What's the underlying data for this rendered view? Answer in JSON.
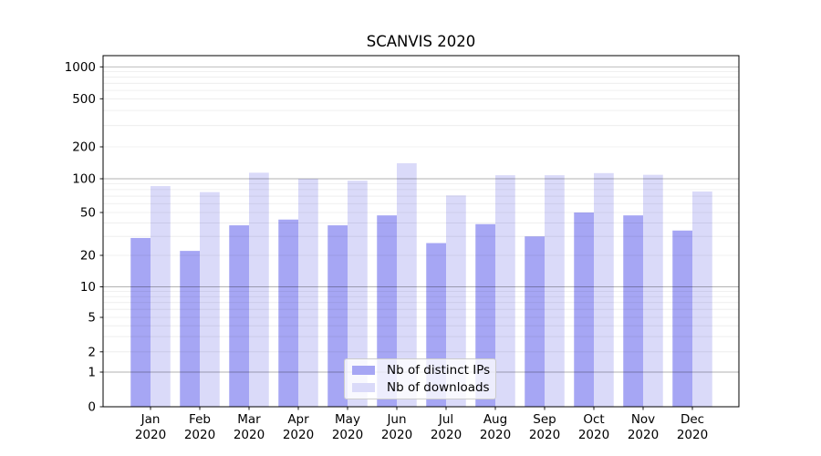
{
  "title": "SCANVIS 2020",
  "chart_data": {
    "type": "bar",
    "title": "SCANVIS 2020",
    "categories": [
      "Jan",
      "Feb",
      "Mar",
      "Apr",
      "May",
      "Jun",
      "Jul",
      "Aug",
      "Sep",
      "Oct",
      "Nov",
      "Dec"
    ],
    "category_year": "2020",
    "series": [
      {
        "name": "Nb of distinct IPs",
        "color": "#a6a6f4",
        "values": [
          29,
          22,
          38,
          43,
          38,
          47,
          26,
          39,
          30,
          50,
          47,
          34
        ]
      },
      {
        "name": "Nb of downloads",
        "color": "#dadaf9",
        "values": [
          86,
          76,
          114,
          100,
          96,
          140,
          71,
          108,
          108,
          113,
          109,
          77
        ]
      }
    ],
    "yscale": "symlog",
    "yticks": [
      0,
      1,
      2,
      5,
      10,
      20,
      50,
      100,
      200,
      500,
      1000
    ],
    "ytick_labels": [
      "0",
      "1",
      "2",
      "5",
      "10",
      "20",
      "50",
      "100",
      "200",
      "500",
      "1000"
    ],
    "ylim": [
      0,
      1200
    ],
    "grid": true,
    "legend_position": "lower center"
  }
}
